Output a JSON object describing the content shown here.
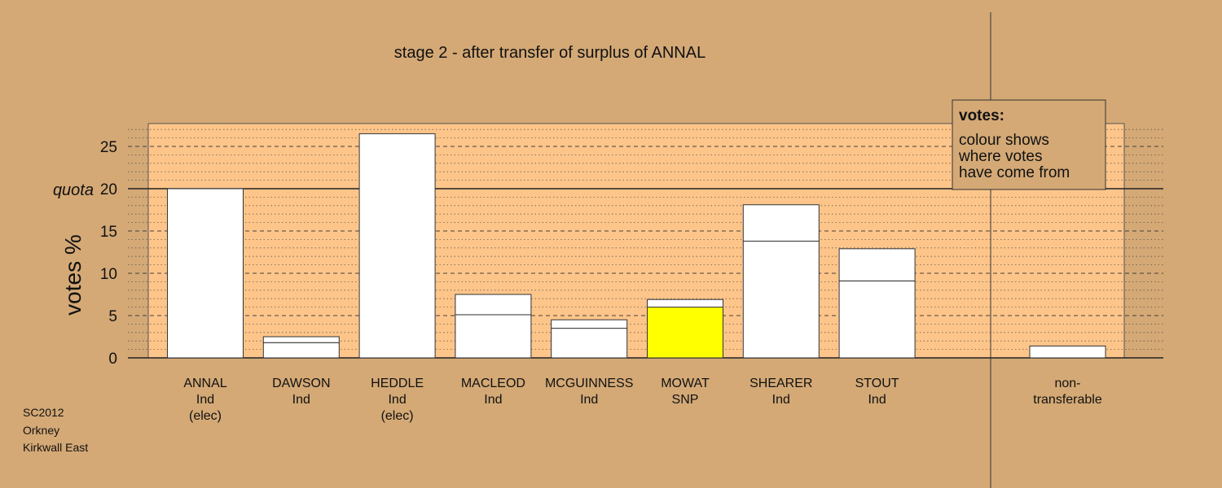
{
  "chart_data": {
    "type": "bar",
    "title": "stage 2 - after transfer of surplus of ANNAL",
    "ylabel": "votes %",
    "quota_label": "quota",
    "quota_value": 20,
    "ylim": [
      0,
      27.7
    ],
    "yticks": [
      0,
      5,
      10,
      15,
      20,
      25
    ],
    "categories": [
      {
        "name": "ANNAL",
        "party": "Ind",
        "status": "(elec)"
      },
      {
        "name": "DAWSON",
        "party": "Ind",
        "status": ""
      },
      {
        "name": "HEDDLE",
        "party": "Ind",
        "status": "(elec)"
      },
      {
        "name": "MACLEOD",
        "party": "Ind",
        "status": ""
      },
      {
        "name": "MCGUINNESS",
        "party": "Ind",
        "status": ""
      },
      {
        "name": "MOWAT",
        "party": "SNP",
        "status": ""
      },
      {
        "name": "SHEARER",
        "party": "Ind",
        "status": ""
      },
      {
        "name": "STOUT",
        "party": "Ind",
        "status": ""
      }
    ],
    "first_preference": [
      20.0,
      1.8,
      26.5,
      5.1,
      3.5,
      6.0,
      13.8,
      9.1
    ],
    "after_transfer": [
      20.0,
      2.5,
      26.5,
      7.5,
      4.5,
      6.9,
      18.1,
      12.9
    ],
    "bar_colors": [
      "#ffffff",
      "#ffffff",
      "#ffffff",
      "#ffffff",
      "#ffffff",
      "#ffff00",
      "#ffffff",
      "#ffffff"
    ],
    "non_transferable": {
      "label_line1": "non-",
      "label_line2": "transferable",
      "value": 1.4
    },
    "legend": {
      "heading": "votes:",
      "lines": [
        "colour shows",
        "where votes",
        "have come from"
      ]
    },
    "grid": "dashed major, dotted minor"
  },
  "footer": [
    "SC2012",
    "Orkney",
    "Kirkwall East"
  ],
  "colors": {
    "background": "#d4a976",
    "plot_area": "#fdc58a",
    "snp": "#ffff00",
    "bar": "#ffffff"
  }
}
